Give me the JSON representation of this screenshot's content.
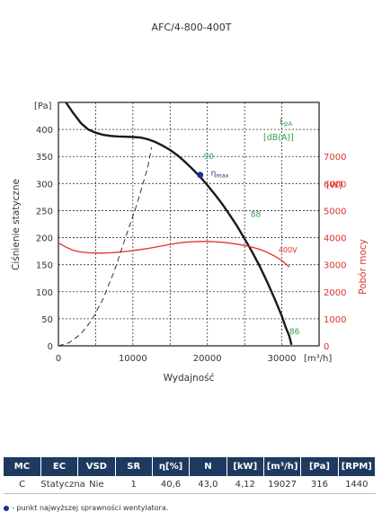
{
  "chart_data": {
    "type": "line",
    "title": "AFC/4-800-400T",
    "xlabel": "Wydajność",
    "xunit": "[m³/h]",
    "ylabel": "Ciśnienie statyczne",
    "yunit": "[Pa]",
    "y2label": "Pobór mocy",
    "y2unit": "[W]",
    "xlim": [
      0,
      35000
    ],
    "ylim": [
      0,
      450
    ],
    "y2lim": [
      0,
      9000
    ],
    "x_ticks": [
      0,
      10000,
      20000,
      30000
    ],
    "y_ticks": [
      0,
      50,
      100,
      150,
      200,
      250,
      300,
      350,
      400
    ],
    "y2_ticks": [
      0,
      1000,
      2000,
      3000,
      4000,
      5000,
      6000,
      7000
    ],
    "grid": true,
    "series": [
      {
        "key": "pressure",
        "axis": "left",
        "color": "#1a1a1a",
        "style": "solid",
        "points": [
          [
            1000,
            450
          ],
          [
            2000,
            430
          ],
          [
            3000,
            412
          ],
          [
            4000,
            400
          ],
          [
            5000,
            394
          ],
          [
            6000,
            390
          ],
          [
            7000,
            388
          ],
          [
            8000,
            387
          ],
          [
            9000,
            386.5
          ],
          [
            10000,
            386
          ],
          [
            11000,
            385
          ],
          [
            12000,
            382
          ],
          [
            13000,
            377
          ],
          [
            14000,
            370
          ],
          [
            15000,
            362
          ],
          [
            16000,
            352
          ],
          [
            17000,
            340
          ],
          [
            18000,
            327
          ],
          [
            19000,
            313
          ],
          [
            20000,
            297
          ],
          [
            21000,
            280
          ],
          [
            22000,
            262
          ],
          [
            23000,
            242
          ],
          [
            24000,
            221
          ],
          [
            25000,
            198
          ],
          [
            26000,
            174
          ],
          [
            27000,
            148
          ],
          [
            28000,
            119
          ],
          [
            29000,
            88
          ],
          [
            30000,
            55
          ],
          [
            30500,
            35
          ],
          [
            31000,
            18
          ],
          [
            31300,
            2
          ]
        ]
      },
      {
        "key": "power",
        "axis": "right",
        "name": "400V",
        "color": "#e0302a",
        "style": "solid",
        "points": [
          [
            0,
            3800
          ],
          [
            1000,
            3650
          ],
          [
            2000,
            3530
          ],
          [
            3000,
            3470
          ],
          [
            4000,
            3440
          ],
          [
            5000,
            3430
          ],
          [
            6000,
            3430
          ],
          [
            7000,
            3440
          ],
          [
            8000,
            3460
          ],
          [
            9000,
            3490
          ],
          [
            10000,
            3520
          ],
          [
            11000,
            3560
          ],
          [
            12000,
            3600
          ],
          [
            13000,
            3650
          ],
          [
            14000,
            3700
          ],
          [
            15000,
            3750
          ],
          [
            16000,
            3800
          ],
          [
            17000,
            3830
          ],
          [
            18000,
            3850
          ],
          [
            19000,
            3860
          ],
          [
            20000,
            3860
          ],
          [
            21000,
            3850
          ],
          [
            22000,
            3830
          ],
          [
            23000,
            3800
          ],
          [
            24000,
            3760
          ],
          [
            25000,
            3710
          ],
          [
            26000,
            3650
          ],
          [
            27000,
            3570
          ],
          [
            28000,
            3460
          ],
          [
            29000,
            3320
          ],
          [
            30000,
            3150
          ],
          [
            31000,
            2920
          ]
        ]
      },
      {
        "key": "system",
        "axis": "left",
        "color": "#333333",
        "style": "dashed",
        "points": [
          [
            0,
            0
          ],
          [
            1500,
            6
          ],
          [
            3000,
            22
          ],
          [
            4500,
            48
          ],
          [
            6000,
            87
          ],
          [
            7500,
            138
          ],
          [
            9000,
            200
          ],
          [
            10500,
            260
          ],
          [
            12000,
            330
          ],
          [
            12500,
            367
          ]
        ]
      }
    ],
    "efficiency_point": {
      "x": 19027,
      "y": 316,
      "label": "η",
      "sub": "max"
    },
    "lpa_labels": [
      {
        "value": "90",
        "x": 19500,
        "y": 345
      },
      {
        "value": "88",
        "x": 25800,
        "y": 238
      },
      {
        "value": "86",
        "x": 31000,
        "y": 22
      }
    ],
    "lpa_header": {
      "line1": "L",
      "sub": "pA",
      "line2": "[dB(A)]"
    },
    "colors": {
      "efficiency_label": "#1e2f8c",
      "lpa": "#2e9e48",
      "power": "#e0302a"
    }
  },
  "table": {
    "headers": [
      "MC",
      "EC",
      "VSD",
      "SR",
      "η[%]",
      "N",
      "[kW]",
      "[m³/h]",
      "[Pa]",
      "[RPM]"
    ],
    "rows": [
      [
        "C",
        "Statyczna",
        "Nie",
        "1",
        "40,6",
        "43,0",
        "4,12",
        "19027",
        "316",
        "1440"
      ]
    ]
  },
  "note": "- punkt najwyższej sprawności wentylatora."
}
